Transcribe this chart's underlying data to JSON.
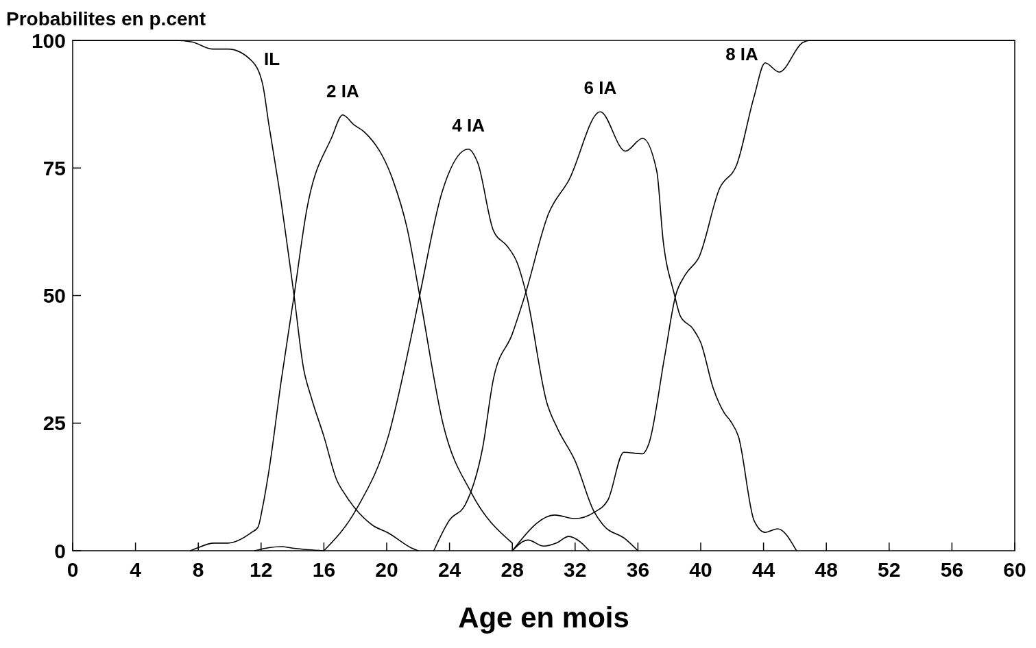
{
  "chart_data": {
    "type": "line",
    "ylabel": "Probabilites en p.cent",
    "xlabel": "Age en mois",
    "xlim": [
      0,
      60
    ],
    "xticks": [
      0,
      4,
      8,
      12,
      16,
      20,
      24,
      28,
      32,
      36,
      40,
      44,
      48,
      52,
      56,
      60
    ],
    "ylim": [
      0,
      100
    ],
    "yticks": [
      0,
      25,
      50,
      75,
      100
    ],
    "grid": false,
    "marker": "none",
    "line_style": "solid",
    "series": [
      {
        "name": "IL",
        "color": "#000000",
        "x": [
          0,
          6.5,
          7.6,
          8.9,
          9.9,
          11.4,
          12.1,
          12.5,
          13.1,
          14.1,
          14.7,
          15.2,
          16,
          16.8,
          17.4,
          19.1,
          20.1,
          21.6,
          22
        ],
        "values": [
          100,
          100,
          99.7,
          98.3,
          98.3,
          96,
          91.4,
          83.4,
          72,
          50,
          35.8,
          30,
          22.4,
          14,
          10.8,
          5,
          3.5,
          0.5,
          0
        ]
      },
      {
        "name": "2 IA",
        "color": "#000000",
        "x": [
          7.5,
          7.9,
          9,
          9.9,
          11.4,
          11.8,
          12.1,
          12.5,
          13.3,
          14.1,
          14.9,
          16.5,
          17.2,
          17.9,
          18.6,
          20.4,
          21.3,
          22.1,
          23.6,
          25.4,
          28
        ],
        "values": [
          0,
          0.5,
          1.5,
          1.5,
          3.6,
          4.6,
          8.6,
          15.7,
          33.7,
          50,
          66.7,
          81,
          85.4,
          83.5,
          82,
          72.6,
          63.2,
          50,
          24.7,
          11.3,
          1.5
        ]
      },
      {
        "color": "#000000",
        "x": [
          11.6,
          12.5,
          13.3,
          14,
          15,
          16
        ],
        "values": [
          0,
          0.6,
          0.8,
          0.5,
          0.2,
          0
        ]
      },
      {
        "name": "4 IA",
        "color": "#000000",
        "x": [
          16,
          18.1,
          20.1,
          21.6,
          22.1,
          23.5,
          25.2,
          25.8,
          26.8,
          27.7,
          28.3,
          28.9,
          30.2,
          30.9,
          32,
          33.2,
          33.8,
          35.2,
          36
        ],
        "values": [
          0,
          8.3,
          22.4,
          42.5,
          50,
          70,
          78.7,
          76,
          62.7,
          59.6,
          56.5,
          50.2,
          29,
          23.8,
          17.6,
          7.7,
          5,
          2.3,
          0
        ]
      },
      {
        "name": "6 IA",
        "color": "#000000",
        "x": [
          23,
          24,
          25,
          26.1,
          26.8,
          28,
          28.8,
          30.3,
          31.6,
          33.6,
          35.2,
          36.3,
          37.2,
          37.6,
          38.3,
          38.7,
          39.5,
          40,
          40.8,
          41.5,
          41.9,
          42.4,
          43.4,
          44.1,
          44.9,
          46.1
        ],
        "values": [
          0,
          6,
          9,
          20,
          33.7,
          42.5,
          50,
          66,
          72.6,
          86,
          78.3,
          80.8,
          74.4,
          61,
          50.5,
          46,
          43.5,
          40.8,
          31.8,
          27,
          25.4,
          22.4,
          5.9,
          3.6,
          4.3,
          0
        ]
      },
      {
        "color": "#000000",
        "x": [
          28,
          29,
          30,
          30.8,
          31.6,
          32.3,
          32.9
        ],
        "values": [
          0,
          2.1,
          0.9,
          1.5,
          2.8,
          1.8,
          0
        ]
      },
      {
        "name": "8 IA",
        "color": "#000000",
        "x": [
          28,
          30.7,
          32,
          33.2,
          34.1,
          35.1,
          36.3,
          36.7,
          37.7,
          38.4,
          39,
          39.9,
          41.2,
          42.3,
          43.4,
          44.1,
          45,
          46.5,
          47,
          60
        ],
        "values": [
          0,
          7,
          6.3,
          7.5,
          10,
          19.3,
          19,
          21,
          38,
          50,
          54,
          57.6,
          71,
          75.7,
          89,
          95.6,
          93.8,
          99.6,
          100,
          100
        ]
      }
    ]
  }
}
